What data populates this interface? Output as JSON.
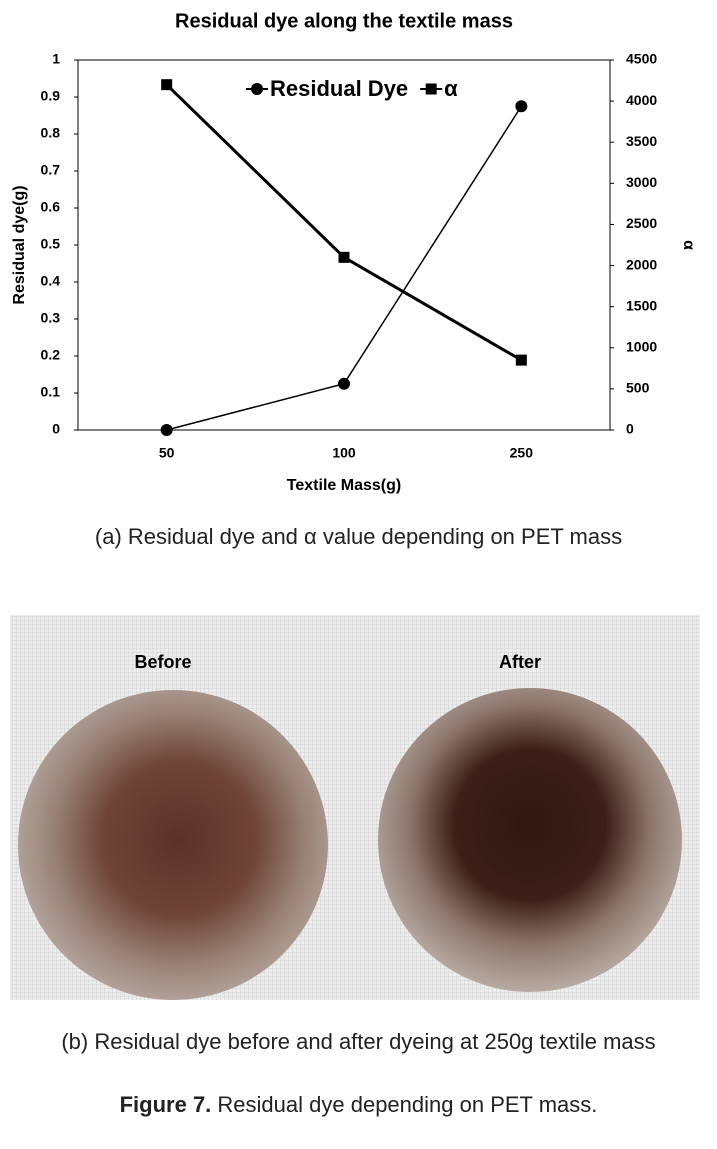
{
  "chart_data": {
    "type": "line",
    "title": "Residual dye along the textile mass",
    "x_label": "Textile Mass(g)",
    "y_label": "Residual dye(g)",
    "y2_label": "α",
    "categories": [
      "50",
      "100",
      "250"
    ],
    "series": [
      {
        "name": "Residual Dye",
        "color": "#000000",
        "marker": "circle",
        "values": [
          0,
          0.125,
          0.875
        ]
      },
      {
        "name": "α",
        "color": "#000000",
        "marker": "square",
        "axis": "y2",
        "values": [
          4200,
          2100,
          850
        ]
      }
    ],
    "ylim": [
      0,
      1
    ],
    "yticks": [
      0,
      0.1,
      0.2,
      0.3,
      0.4,
      0.5,
      0.6,
      0.7,
      0.8,
      0.9,
      1
    ],
    "y2lim": [
      0,
      4500
    ],
    "y2ticks": [
      0,
      500,
      1000,
      1500,
      2000,
      2500,
      3000,
      3500,
      4000,
      4500
    ],
    "grid": false
  },
  "captions": {
    "a": "(a) Residual dye and α value depending on PET mass",
    "b": "(b) Residual dye before and after dyeing at 250g textile mass"
  },
  "photo": {
    "labels": [
      "Before",
      "After"
    ]
  },
  "figure": {
    "label": "Figure 7.",
    "text": "Residual dye depending on PET mass."
  }
}
